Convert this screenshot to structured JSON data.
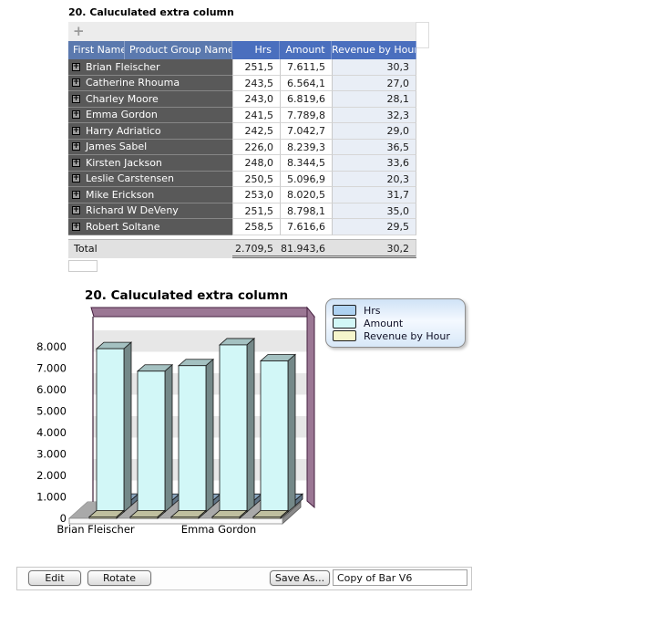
{
  "report": {
    "title": "20. Caluculated extra column"
  },
  "table": {
    "toolbar": {
      "add_label": "+"
    },
    "headers": {
      "first_name": "First Name",
      "product_group": "Product Group Name",
      "hrs": "Hrs",
      "amount": "Amount",
      "revenue": "Revenue by Hour"
    },
    "rows": [
      {
        "name": "Brian Fleischer",
        "hrs": "251,5",
        "amount": "7.611,5",
        "revenue": "30,3"
      },
      {
        "name": "Catherine Rhouma",
        "hrs": "243,5",
        "amount": "6.564,1",
        "revenue": "27,0"
      },
      {
        "name": "Charley Moore",
        "hrs": "243,0",
        "amount": "6.819,6",
        "revenue": "28,1"
      },
      {
        "name": "Emma Gordon",
        "hrs": "241,5",
        "amount": "7.789,8",
        "revenue": "32,3"
      },
      {
        "name": "Harry Adriatico",
        "hrs": "242,5",
        "amount": "7.042,7",
        "revenue": "29,0"
      },
      {
        "name": "James Sabel",
        "hrs": "226,0",
        "amount": "8.239,3",
        "revenue": "36,5"
      },
      {
        "name": "Kirsten Jackson",
        "hrs": "248,0",
        "amount": "8.344,5",
        "revenue": "33,6"
      },
      {
        "name": "Leslie Carstensen",
        "hrs": "250,5",
        "amount": "5.096,9",
        "revenue": "20,3"
      },
      {
        "name": "Mike Erickson",
        "hrs": "253,0",
        "amount": "8.020,5",
        "revenue": "31,7"
      },
      {
        "name": "Richard W DeVeny",
        "hrs": "251,5",
        "amount": "8.798,1",
        "revenue": "35,0"
      },
      {
        "name": "Robert Soltane",
        "hrs": "258,5",
        "amount": "7.616,6",
        "revenue": "29,5"
      }
    ],
    "total": {
      "label": "Total",
      "hrs": "2.709,5",
      "amount": "81.943,6",
      "revenue": "30,2"
    }
  },
  "chart": {
    "title": "20. Caluculated extra column"
  },
  "chart_data": {
    "type": "bar",
    "style": "3d",
    "title": "20. Caluculated extra column",
    "categories": [
      "Brian Fleischer",
      "Catherine Rhouma",
      "Charley Moore",
      "Emma Gordon",
      "Harry Adriatico"
    ],
    "series": [
      {
        "name": "Hrs",
        "color": "#aed2f2",
        "values": [
          251.5,
          243.5,
          243.0,
          241.5,
          242.5
        ]
      },
      {
        "name": "Amount",
        "color": "#d2f7f7",
        "values": [
          7611.5,
          6564.1,
          6819.6,
          7789.8,
          7042.7
        ]
      },
      {
        "name": "Revenue by Hour",
        "color": "#f5f5cc",
        "values": [
          30.3,
          27.0,
          28.1,
          32.3,
          29.0
        ]
      }
    ],
    "ylim": [
      0,
      8000
    ],
    "ytick_labels": [
      "0",
      "1.000",
      "2.000",
      "3.000",
      "4.000",
      "5.000",
      "6.000",
      "7.000",
      "8.000"
    ],
    "xtick_label_every": 3,
    "xtick_labels_visible": [
      "Brian Fleischer",
      "Emma Gordon"
    ],
    "legend_position": "top-right",
    "grid": "horizontal-bands"
  },
  "controls": {
    "edit": "Edit",
    "rotate": "Rotate",
    "save_as": "Save As...",
    "name_input_value": "Copy of Bar V6"
  }
}
